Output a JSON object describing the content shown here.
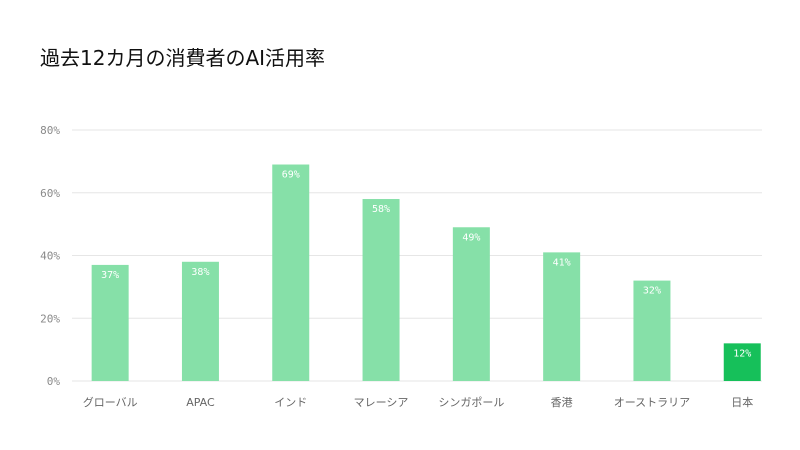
{
  "chart_data": {
    "type": "bar",
    "title": "過去12カ月の消費者のAI活用率",
    "categories": [
      "グローバル",
      "APAC",
      "インド",
      "マレーシア",
      "シンガポール",
      "香港",
      "オーストラリア",
      "日本"
    ],
    "values": [
      37,
      38,
      69,
      58,
      49,
      41,
      32,
      12
    ],
    "data_labels": [
      "37%",
      "38%",
      "69%",
      "58%",
      "49%",
      "41%",
      "32%",
      "12%"
    ],
    "y_ticks": [
      0,
      20,
      40,
      60,
      80
    ],
    "y_tick_labels": [
      "0%",
      "20%",
      "40%",
      "60%",
      "80%"
    ],
    "ylim": [
      0,
      80
    ],
    "grid": true,
    "legend": "none",
    "colors": {
      "bar": "#86e0a8",
      "highlight_bar": "#16c05a",
      "grid": "#e6e6e6",
      "title": "#111111"
    },
    "highlight_index": 7
  }
}
